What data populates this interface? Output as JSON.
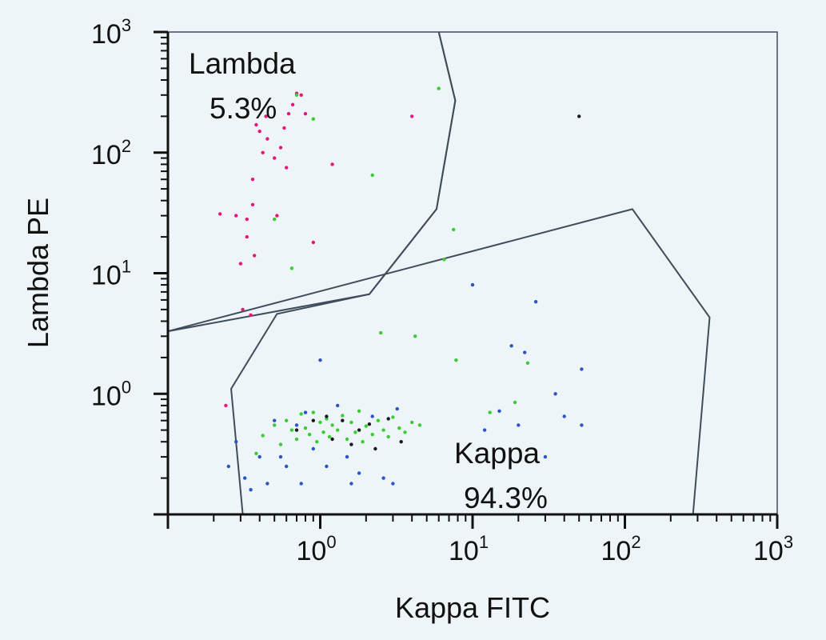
{
  "chart_data": {
    "type": "scatter",
    "title": "",
    "xlabel": "Kappa FITC",
    "ylabel": "Lambda PE",
    "xscale": "log",
    "yscale": "log",
    "xlim": [
      0.1,
      1000
    ],
    "ylim": [
      0.1,
      1000
    ],
    "grid": false,
    "x_ticks": [
      {
        "base": "10",
        "exp": "0",
        "value": 1
      },
      {
        "base": "10",
        "exp": "1",
        "value": 10
      },
      {
        "base": "10",
        "exp": "2",
        "value": 100
      },
      {
        "base": "10",
        "exp": "3",
        "value": 1000
      }
    ],
    "y_ticks": [
      {
        "base": "10",
        "exp": "0",
        "value": 1
      },
      {
        "base": "10",
        "exp": "1",
        "value": 10
      },
      {
        "base": "10",
        "exp": "2",
        "value": 100
      },
      {
        "base": "10",
        "exp": "3",
        "value": 1000
      }
    ],
    "gates": [
      {
        "label": "Lambda",
        "percent": "5.3%",
        "polygon": [
          [
            0.1,
            3.3
          ],
          [
            2.1,
            6.7
          ],
          [
            5.8,
            34
          ],
          [
            7.7,
            270
          ],
          [
            6.0,
            1000
          ]
        ]
      },
      {
        "label": "Kappa",
        "percent": "94.3%",
        "polygon": [
          [
            0.31,
            0.1
          ],
          [
            0.26,
            1.1
          ],
          [
            0.52,
            4.6
          ],
          [
            2.1,
            6.7
          ],
          [
            5.8,
            34
          ],
          [
            7.7,
            270
          ],
          [
            6.0,
            1000
          ],
          [
            0.1,
            3.3
          ],
          [
            112,
            34
          ],
          [
            360,
            4.3
          ],
          [
            280,
            0.1
          ]
        ]
      }
    ],
    "series": [
      {
        "color": "#e8157a",
        "points": [
          [
            0.24,
            0.8
          ],
          [
            0.3,
            12
          ],
          [
            0.31,
            5
          ],
          [
            0.35,
            4.5
          ],
          [
            0.36,
            60
          ],
          [
            0.38,
            170
          ],
          [
            0.4,
            150
          ],
          [
            0.42,
            100
          ],
          [
            0.44,
            200
          ],
          [
            0.45,
            130
          ],
          [
            0.5,
            90
          ],
          [
            0.52,
            30
          ],
          [
            0.55,
            110
          ],
          [
            0.58,
            160
          ],
          [
            0.6,
            75
          ],
          [
            0.62,
            210
          ],
          [
            0.66,
            250
          ],
          [
            0.7,
            310
          ],
          [
            0.75,
            300
          ],
          [
            0.8,
            210
          ],
          [
            0.9,
            18
          ],
          [
            1.2,
            80
          ],
          [
            4.0,
            200
          ],
          [
            0.22,
            31
          ],
          [
            0.28,
            30
          ],
          [
            0.33,
            28
          ],
          [
            0.36,
            37
          ],
          [
            0.37,
            14
          ],
          [
            0.33,
            20
          ]
        ]
      },
      {
        "color": "#39cc33",
        "series_note_hidden": null,
        "points": [
          [
            0.38,
            0.32
          ],
          [
            0.42,
            0.45
          ],
          [
            0.5,
            0.55
          ],
          [
            0.55,
            0.38
          ],
          [
            0.6,
            0.6
          ],
          [
            0.65,
            0.5
          ],
          [
            0.7,
            0.42
          ],
          [
            0.75,
            0.68
          ],
          [
            0.8,
            0.52
          ],
          [
            0.85,
            0.46
          ],
          [
            0.9,
            0.7
          ],
          [
            0.95,
            0.4
          ],
          [
            1.0,
            0.58
          ],
          [
            1.05,
            0.48
          ],
          [
            1.1,
            0.62
          ],
          [
            1.15,
            0.44
          ],
          [
            1.2,
            0.55
          ],
          [
            1.3,
            0.5
          ],
          [
            1.4,
            0.66
          ],
          [
            1.5,
            0.42
          ],
          [
            1.6,
            0.58
          ],
          [
            1.7,
            0.48
          ],
          [
            1.8,
            0.72
          ],
          [
            1.9,
            0.4
          ],
          [
            2.0,
            0.54
          ],
          [
            2.2,
            0.46
          ],
          [
            2.4,
            0.6
          ],
          [
            2.6,
            0.5
          ],
          [
            2.8,
            0.44
          ],
          [
            3.0,
            0.64
          ],
          [
            3.3,
            0.52
          ],
          [
            3.6,
            0.48
          ],
          [
            4.0,
            0.58
          ],
          [
            4.5,
            0.55
          ],
          [
            0.5,
            28
          ],
          [
            0.65,
            11
          ],
          [
            0.7,
            300
          ],
          [
            0.9,
            190
          ],
          [
            2.2,
            65
          ],
          [
            2.5,
            3.2
          ],
          [
            4.2,
            3.0
          ],
          [
            6.0,
            340
          ],
          [
            6.5,
            13
          ],
          [
            7.5,
            23
          ],
          [
            7.8,
            1.9
          ],
          [
            13,
            0.7
          ],
          [
            19,
            0.85
          ],
          [
            23,
            1.8
          ]
        ]
      },
      {
        "color": "#2a55c8",
        "points": [
          [
            0.25,
            0.25
          ],
          [
            0.28,
            0.4
          ],
          [
            0.32,
            0.2
          ],
          [
            0.4,
            0.3
          ],
          [
            0.45,
            0.18
          ],
          [
            0.5,
            0.6
          ],
          [
            0.55,
            0.3
          ],
          [
            0.6,
            0.25
          ],
          [
            0.7,
            0.55
          ],
          [
            0.8,
            0.7
          ],
          [
            0.9,
            0.35
          ],
          [
            1.1,
            0.25
          ],
          [
            1.3,
            0.8
          ],
          [
            1.5,
            0.3
          ],
          [
            1.8,
            0.22
          ],
          [
            2.2,
            0.65
          ],
          [
            2.6,
            0.2
          ],
          [
            3.2,
            0.75
          ],
          [
            0.35,
            0.16
          ],
          [
            0.75,
            0.18
          ],
          [
            1.6,
            0.18
          ],
          [
            12,
            0.5
          ],
          [
            15,
            0.72
          ],
          [
            18,
            2.5
          ],
          [
            20,
            0.55
          ],
          [
            22,
            2.2
          ],
          [
            26,
            5.8
          ],
          [
            30,
            0.3
          ],
          [
            35,
            1.0
          ],
          [
            40,
            0.65
          ],
          [
            52,
            1.6
          ],
          [
            52,
            0.55
          ],
          [
            10,
            8
          ],
          [
            3,
            0.18
          ],
          [
            1.0,
            1.9
          ]
        ]
      },
      {
        "color": "#1a1a1a",
        "points": [
          [
            0.7,
            0.5
          ],
          [
            0.9,
            0.6
          ],
          [
            1.2,
            0.42
          ],
          [
            1.4,
            0.6
          ],
          [
            1.6,
            0.38
          ],
          [
            1.8,
            0.5
          ],
          [
            2.1,
            0.56
          ],
          [
            2.3,
            0.35
          ],
          [
            2.8,
            0.62
          ],
          [
            3.4,
            0.4
          ],
          [
            1.1,
            0.65
          ],
          [
            50,
            200
          ]
        ]
      }
    ],
    "annotations": [
      {
        "text": "Lambda",
        "percent": "5.3%"
      },
      {
        "text": "Kappa",
        "percent": "94.3%"
      }
    ]
  }
}
